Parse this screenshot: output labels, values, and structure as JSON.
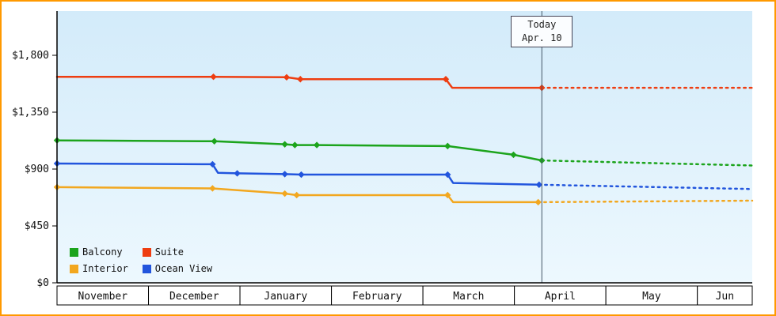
{
  "frame": {
    "border_color": "#ff9900"
  },
  "chart_data": {
    "type": "line",
    "title": "",
    "background": {
      "top": "#d3ebfa",
      "bottom": "#edf8fe"
    },
    "y_axis": {
      "max": 1800,
      "ticks": [
        0,
        450,
        900,
        1350,
        1800
      ],
      "tick_labels": [
        "$0",
        "$450",
        "$900",
        "$1,350",
        "$1,800"
      ]
    },
    "x_axis": {
      "month_labels": [
        "November",
        "December",
        "January",
        "February",
        "March",
        "April",
        "May",
        "Jun"
      ],
      "end_unit": 7.6
    },
    "today": {
      "line1": "Today",
      "line2": "Apr. 10",
      "x_unit": 5.3,
      "line_color": "#445566"
    },
    "legend": [
      {
        "label": "Balcony",
        "color": "#1ca41c"
      },
      {
        "label": "Suite",
        "color": "#ee3d11"
      },
      {
        "label": "Interior",
        "color": "#f2a71f"
      },
      {
        "label": "Ocean View",
        "color": "#2255dd"
      }
    ],
    "series": [
      {
        "name": "Balcony",
        "color": "#1ca41c",
        "solid": [
          [
            0,
            1127
          ],
          [
            1.72,
            1120
          ],
          [
            2.49,
            1096
          ],
          [
            2.6,
            1090
          ],
          [
            2.84,
            1090
          ],
          [
            4.27,
            1082
          ],
          [
            4.99,
            1013
          ],
          [
            5.3,
            968
          ]
        ],
        "dotted": [
          [
            5.3,
            968
          ],
          [
            7.6,
            928
          ]
        ],
        "markers": [
          [
            0,
            1127
          ],
          [
            1.72,
            1120
          ],
          [
            2.49,
            1096
          ],
          [
            2.6,
            1090
          ],
          [
            2.84,
            1090
          ],
          [
            4.27,
            1082
          ],
          [
            4.99,
            1013
          ],
          [
            5.3,
            968
          ]
        ]
      },
      {
        "name": "Suite",
        "color": "#ee3d11",
        "solid": [
          [
            0,
            1630
          ],
          [
            1.71,
            1630
          ],
          [
            2.51,
            1626
          ],
          [
            2.66,
            1611
          ],
          [
            4.25,
            1611
          ],
          [
            4.32,
            1543
          ],
          [
            5.3,
            1543
          ]
        ],
        "dotted": [
          [
            5.3,
            1543
          ],
          [
            7.6,
            1543
          ]
        ],
        "markers": [
          [
            1.71,
            1630
          ],
          [
            2.51,
            1626
          ],
          [
            2.66,
            1611
          ],
          [
            4.25,
            1611
          ],
          [
            5.3,
            1543
          ]
        ]
      },
      {
        "name": "Interior",
        "color": "#f2a71f",
        "solid": [
          [
            0,
            757
          ],
          [
            1.7,
            747
          ],
          [
            2.49,
            706
          ],
          [
            2.62,
            694
          ],
          [
            4.27,
            694
          ],
          [
            4.33,
            638
          ],
          [
            5.26,
            638
          ]
        ],
        "dotted": [
          [
            5.26,
            638
          ],
          [
            7.6,
            650
          ]
        ],
        "markers": [
          [
            0,
            757
          ],
          [
            1.7,
            747
          ],
          [
            2.49,
            706
          ],
          [
            2.62,
            694
          ],
          [
            4.27,
            694
          ],
          [
            5.26,
            638
          ]
        ]
      },
      {
        "name": "Ocean View",
        "color": "#2255dd",
        "solid": [
          [
            0,
            944
          ],
          [
            1.7,
            938
          ],
          [
            1.76,
            870
          ],
          [
            1.97,
            866
          ],
          [
            2.49,
            860
          ],
          [
            2.67,
            856
          ],
          [
            4.27,
            856
          ],
          [
            4.33,
            790
          ],
          [
            5.27,
            776
          ]
        ],
        "dotted": [
          [
            5.27,
            776
          ],
          [
            7.6,
            742
          ]
        ],
        "markers": [
          [
            0,
            944
          ],
          [
            1.7,
            938
          ],
          [
            1.97,
            866
          ],
          [
            2.49,
            860
          ],
          [
            2.67,
            856
          ],
          [
            4.27,
            856
          ],
          [
            5.27,
            776
          ]
        ]
      }
    ]
  }
}
